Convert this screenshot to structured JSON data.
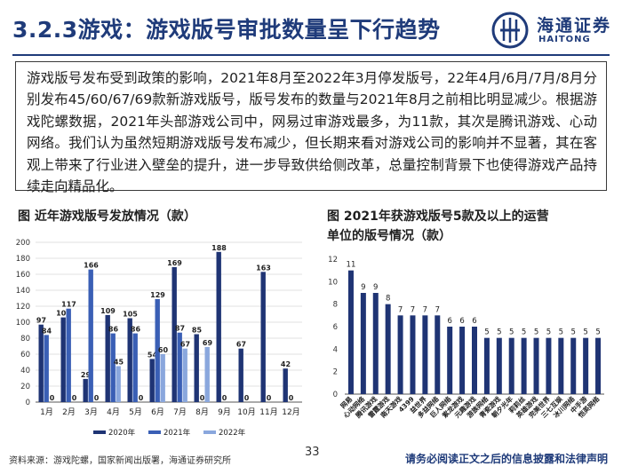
{
  "header": {
    "title": "3.2.3游戏：游戏版号审批数量呈下行趋势",
    "logo_cn": "海通证券",
    "logo_en": "HAITONG"
  },
  "body_text": "游戏版号发布受到政策的影响，2021年8月至2022年3月停发版号，22年4月/6月/7月/8月分别发布45/60/67/69款新游戏版号，版号发布的数量与2021年8月之前相比明显减少。根据游戏陀螺数据，2021年头部游戏公司中，网易过审游戏最多，为11款，其次是腾讯游戏、心动网络。我们认为虽然短期游戏版号发布减少，但长期来看对游戏公司的影响并不显著，其在客观上带来了行业进入壁垒的提升，进一步导致供给侧改革，总量控制背景下也使得游戏产品持续走向精品化。",
  "colors": {
    "navy": "#1f3b7a",
    "s2020": "#1f3474",
    "s2021": "#3a5fb5",
    "s2022": "#8aa7dd",
    "bar_right": "#1f3474"
  },
  "chart_data": [
    {
      "type": "bar",
      "title": "图 近年游戏版号发放情况（款）",
      "categories": [
        "1月",
        "2月",
        "3月",
        "4月",
        "5月",
        "6月",
        "7月",
        "8月",
        "9月",
        "10月",
        "11月",
        "12月"
      ],
      "ylim": [
        0,
        200
      ],
      "yticks": [
        0,
        20,
        40,
        60,
        80,
        100,
        120,
        140,
        160,
        180,
        200
      ],
      "legend_position": "bottom",
      "series": [
        {
          "name": "2020年",
          "values": [
            97,
            106,
            29,
            109,
            105,
            54,
            169,
            85,
            188,
            67,
            163,
            42
          ]
        },
        {
          "name": "2021年",
          "values": [
            84,
            117,
            166,
            86,
            86,
            129,
            87,
            0,
            0,
            0,
            0,
            0
          ]
        },
        {
          "name": "2022年",
          "values": [
            0,
            0,
            0,
            45,
            0,
            60,
            67,
            69,
            null,
            null,
            null,
            null
          ]
        }
      ],
      "bar_labels": [
        [
          "97",
          "106",
          "29",
          "109",
          "105",
          "54",
          "169",
          "85",
          "188",
          "67",
          "163",
          "42"
        ],
        [
          "84",
          "117",
          "166",
          "86",
          "86",
          "129",
          "87",
          "0",
          "0",
          "0",
          "0",
          "0"
        ],
        [
          "0",
          "0",
          "0",
          "45",
          "0",
          "60",
          "67",
          "69",
          "",
          "",
          "",
          ""
        ]
      ]
    },
    {
      "type": "bar",
      "title": "图 2021年获游戏版号5款及以上的运营单位的版号情况（款）",
      "title_lines": [
        "图 2021年获游戏版号5款及以上的运营",
        "单位的版号情况（款）"
      ],
      "ylim": [
        0,
        12
      ],
      "yticks": [
        0,
        2,
        4,
        6,
        8,
        10,
        12
      ],
      "categories": [
        "网易",
        "心动网络",
        "腾讯游戏",
        "雷霆游戏",
        "南天游戏",
        "4399",
        "益世界",
        "多益网络",
        "巨人网络",
        "紫龙游戏",
        "元趣游戏",
        "游族网络",
        "青瓷游戏",
        "朝夕光年",
        "莉莉丝",
        "英雄游戏",
        "完美世界",
        "三七互娱",
        "冰川网络",
        "中手游",
        "恺英网络"
      ],
      "values": [
        11,
        9,
        9,
        8,
        7,
        7,
        7,
        7,
        6,
        6,
        6,
        5,
        5,
        5,
        5,
        5,
        5,
        5,
        5,
        5,
        5
      ]
    }
  ],
  "footer": {
    "source": "资料来源：游戏陀螺，国家新闻出版署，海通证券研究所",
    "page": "33",
    "disclaimer": "请务必阅读正文之后的信息披露和法律声明"
  }
}
